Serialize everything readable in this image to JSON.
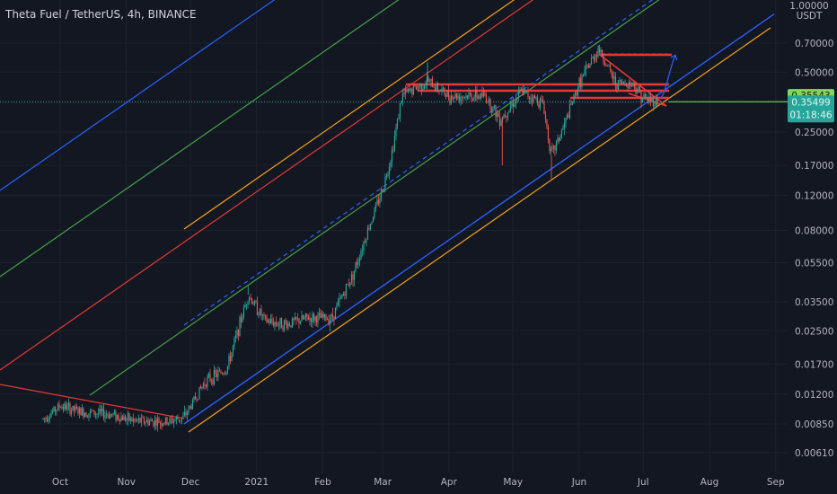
{
  "header": {
    "title": "Theta Fuel / TetherUS, 4h, BINANCE",
    "currency": "USDT",
    "top_tick": "1.00000"
  },
  "colors": {
    "background": "#131722",
    "grid": "#1e222d",
    "up": "#26a69a",
    "down": "#ef5350",
    "blue": "#2962ff",
    "green": "#43a047",
    "orange": "#f7a21b",
    "red": "#e53935",
    "price_tag": "#26a69a",
    "last_tag": "#7cdc5a"
  },
  "price_tags": {
    "last_price": "0.35543",
    "current_price": "0.35499",
    "countdown": "01:18:46"
  },
  "chart_data": {
    "type": "candlestick",
    "title": "Theta Fuel / TetherUS, 4h, BINANCE",
    "y_scale": "log",
    "ylim": [
      0.0055,
      1.05
    ],
    "y_ticks": [
      "0.70000",
      "0.50000",
      "0.35000",
      "0.25000",
      "0.17000",
      "0.12000",
      "0.08000",
      "0.05500",
      "0.03500",
      "0.02500",
      "0.01700",
      "0.01200",
      "0.00850",
      "0.00610"
    ],
    "x_ticks": [
      "Oct",
      "Nov",
      "Dec",
      "2021",
      "Feb",
      "Mar",
      "Apr",
      "May",
      "Jun",
      "Jul",
      "Aug",
      "Sep"
    ],
    "price_path": [
      [
        "2020-09-23",
        0.009
      ],
      [
        "2020-10-01",
        0.0105
      ],
      [
        "2020-10-10",
        0.0098
      ],
      [
        "2020-10-25",
        0.0095
      ],
      [
        "2020-11-05",
        0.0088
      ],
      [
        "2020-11-20",
        0.0087
      ],
      [
        "2020-11-28",
        0.0092
      ],
      [
        "2020-12-08",
        0.014
      ],
      [
        "2020-12-18",
        0.016
      ],
      [
        "2020-12-28",
        0.038
      ],
      [
        "2021-01-05",
        0.028
      ],
      [
        "2021-01-15",
        0.027
      ],
      [
        "2021-01-25",
        0.029
      ],
      [
        "2021-02-05",
        0.029
      ],
      [
        "2021-02-15",
        0.048
      ],
      [
        "2021-02-22",
        0.08
      ],
      [
        "2021-03-01",
        0.13
      ],
      [
        "2021-03-05",
        0.19
      ],
      [
        "2021-03-10",
        0.38
      ],
      [
        "2021-03-22",
        0.45
      ],
      [
        "2021-04-01",
        0.38
      ],
      [
        "2021-04-18",
        0.38
      ],
      [
        "2021-04-25",
        0.29
      ],
      [
        "2021-05-05",
        0.4
      ],
      [
        "2021-05-15",
        0.35
      ],
      [
        "2021-05-19",
        0.19
      ],
      [
        "2021-05-25",
        0.27
      ],
      [
        "2021-06-01",
        0.44
      ],
      [
        "2021-06-10",
        0.66
      ],
      [
        "2021-06-18",
        0.44
      ],
      [
        "2021-06-26",
        0.44
      ],
      [
        "2021-07-01",
        0.37
      ],
      [
        "2021-07-08",
        0.355
      ]
    ],
    "projection": {
      "from": [
        "2021-07-09",
        0.37
      ],
      "to": [
        "2021-07-16",
        0.61
      ]
    }
  }
}
